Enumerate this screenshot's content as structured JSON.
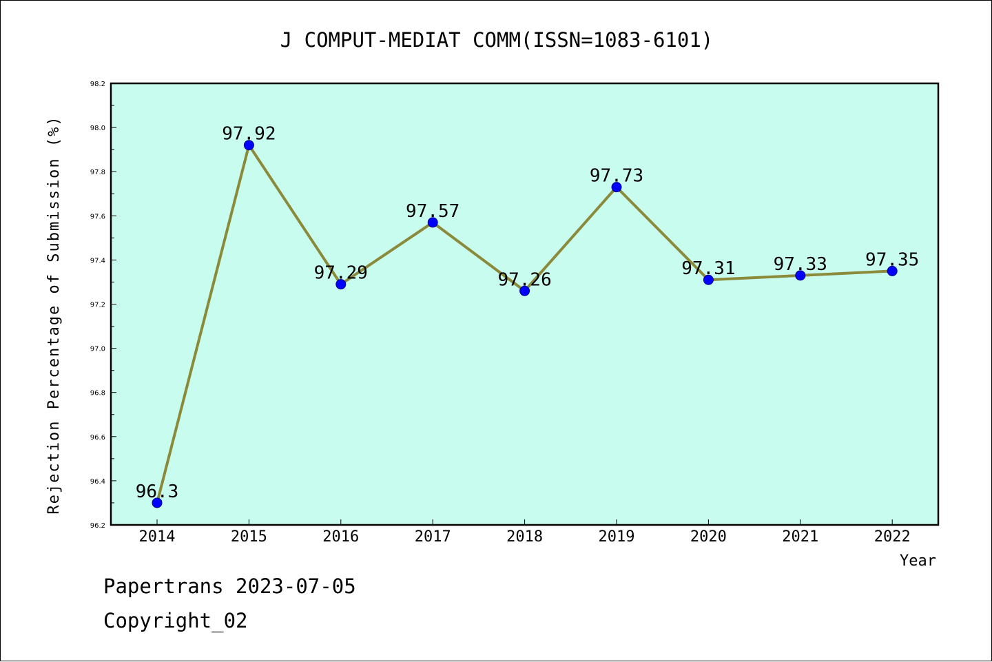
{
  "chart_data": {
    "type": "line",
    "title": "J COMPUT-MEDIAT COMM(ISSN=1083-6101)",
    "xlabel": "Year",
    "ylabel": "Rejection Percentage of Submission (%)",
    "categories": [
      "2014",
      "2015",
      "2016",
      "2017",
      "2018",
      "2019",
      "2020",
      "2021",
      "2022"
    ],
    "values": [
      96.3,
      97.92,
      97.29,
      97.57,
      97.26,
      97.73,
      97.31,
      97.33,
      97.35
    ],
    "data_labels": [
      "96.3",
      "97.92",
      "97.29",
      "97.57",
      "97.26",
      "97.73",
      "97.31",
      "97.33",
      "97.35"
    ],
    "ylim": [
      96.2,
      98.2
    ],
    "yticks": [
      "96.2",
      "96.4",
      "96.6",
      "96.8",
      "97.0",
      "97.2",
      "97.4",
      "97.6",
      "97.8",
      "98.0",
      "98.2"
    ],
    "grid": false,
    "legend": "none",
    "colors": {
      "plot_background": "#c8fcee",
      "line": "#8b8a3b",
      "marker": "#0000ff",
      "frame": "#000000"
    }
  },
  "footer": {
    "line1": "Papertrans 2023-07-05",
    "line2": "Copyright_02"
  }
}
